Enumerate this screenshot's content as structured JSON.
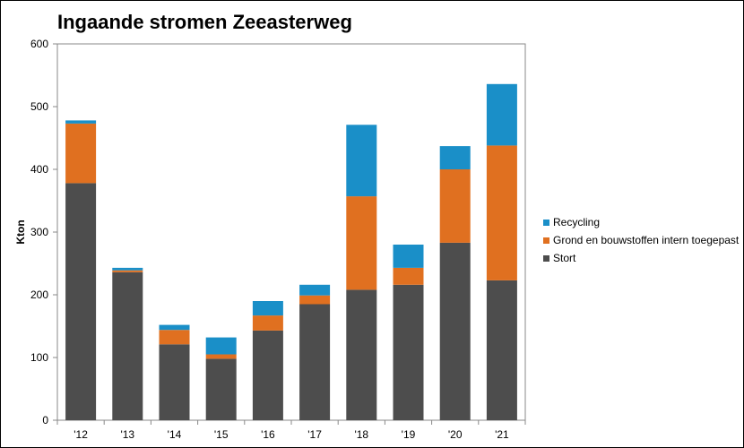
{
  "chart_data": {
    "type": "bar",
    "stacked": true,
    "title": "Ingaande stromen Zeeasterweg",
    "xlabel": "",
    "ylabel": "Kton",
    "ylim": [
      0,
      600
    ],
    "yticks": [
      0,
      100,
      200,
      300,
      400,
      500,
      600
    ],
    "grid": false,
    "legend_position": "right",
    "categories": [
      "'12",
      "'13",
      "'14",
      "'15",
      "'16",
      "'17",
      "'18",
      "'19",
      "'20",
      "'21"
    ],
    "series": [
      {
        "name": "Stort",
        "color": "#4d4d4d",
        "values": [
          378,
          236,
          121,
          98,
          143,
          185,
          208,
          216,
          283,
          223
        ]
      },
      {
        "name": "Grond en bouwstoffen intern toegepast",
        "color": "#e07020",
        "values": [
          95,
          3,
          23,
          7,
          24,
          14,
          149,
          27,
          117,
          215
        ]
      },
      {
        "name": "Recycling",
        "color": "#1a8fc8",
        "values": [
          5,
          4,
          8,
          27,
          23,
          17,
          114,
          37,
          37,
          98
        ]
      }
    ]
  },
  "legend_order": [
    "Recycling",
    "Grond en bouwstoffen intern toegepast",
    "Stort"
  ]
}
